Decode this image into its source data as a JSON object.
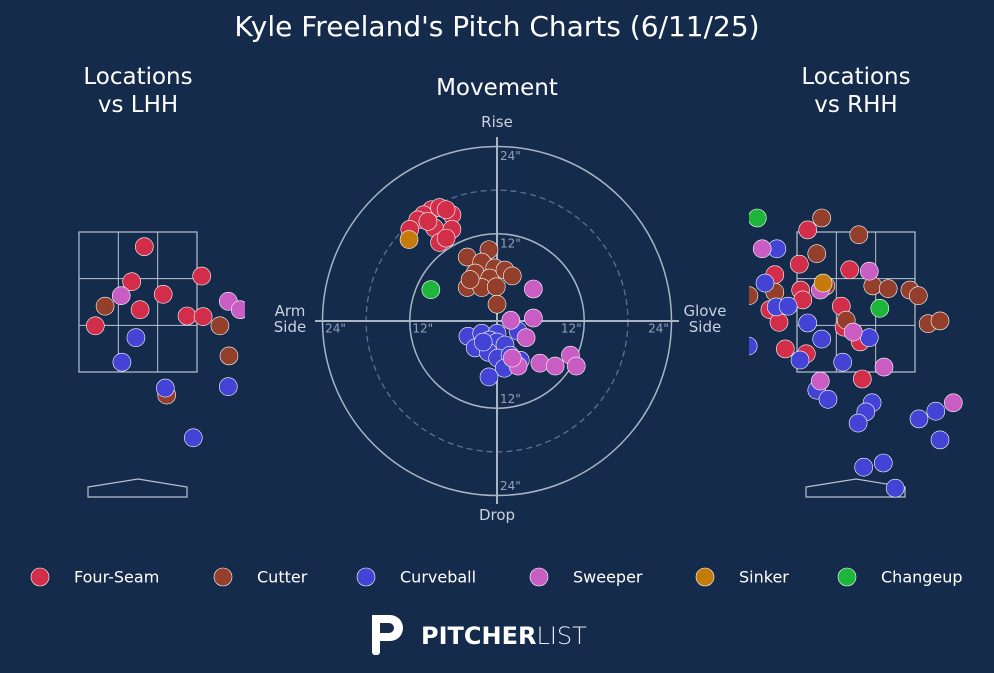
{
  "title": "Kyle Freeland's Pitch Charts (6/11/25)",
  "chart_data": [
    {
      "type": "scatter",
      "title": "Locations\nvs LHH",
      "xlim": [
        -1.5,
        1.5
      ],
      "ylim": [
        -0.3,
        4.8
      ],
      "series": [
        {
          "color": "#d22d49",
          "x": [
            0.09,
            -0.09,
            0.91,
            0.36,
            0.03,
            -0.61,
            0.7,
            0.93
          ],
          "y": [
            3.29,
            2.79,
            2.87,
            2.61,
            2.39,
            2.16,
            2.3,
            2.29
          ]
        },
        {
          "color": "#933f2c",
          "x": [
            -0.47,
            1.17,
            1.3,
            0.41
          ],
          "y": [
            2.44,
            2.16,
            1.73,
            1.17
          ]
        },
        {
          "color": "#4343d6",
          "x": [
            -0.03,
            -0.23,
            0.39,
            1.29,
            0.79
          ],
          "y": [
            1.99,
            1.64,
            1.27,
            1.29,
            0.56
          ]
        },
        {
          "color": "#c95dc4",
          "x": [
            -0.24,
            1.29,
            1.46
          ],
          "y": [
            2.59,
            2.51,
            2.39
          ]
        }
      ]
    },
    {
      "type": "movement",
      "title": "Movement",
      "xlim": [
        -24,
        24
      ],
      "ylim": [
        -24,
        24
      ],
      "xticks": [
        {
          "value": -24,
          "label": "24\""
        },
        {
          "value": -12,
          "label": "12\""
        },
        {
          "value": 12,
          "label": "12\""
        },
        {
          "value": 24,
          "label": "24\""
        }
      ],
      "yticks": [
        {
          "value": 24,
          "label": "24\""
        },
        {
          "value": 12,
          "label": "12\""
        },
        {
          "value": -12,
          "label": "12\""
        },
        {
          "value": -24,
          "label": "24\""
        }
      ],
      "x_label_left": "Arm\nSide",
      "x_label_right": "Glove\nSide",
      "y_label_top": "Rise",
      "y_label_bottom": "Drop",
      "series": [
        {
          "name": "Four-Seam",
          "color": "#d22d49",
          "x": [
            -9.0,
            -10.1,
            -7.9,
            -6.2,
            -7.0,
            -10.9,
            -12.0,
            -8.6,
            -6.2,
            -7.9,
            -7.0,
            -9.5
          ],
          "y": [
            15.3,
            14.6,
            15.6,
            14.6,
            15.3,
            13.9,
            12.6,
            12.8,
            12.6,
            10.8,
            11.4,
            13.7
          ]
        },
        {
          "name": "Cutter",
          "color": "#933f2c",
          "x": [
            -4.1,
            -1.1,
            -2.1,
            -0.3,
            -3.0,
            -1.0,
            1.1,
            2.1,
            -4.1,
            -2.1,
            -0.1,
            0,
            -3.7
          ],
          "y": [
            8.8,
            9.8,
            8.1,
            7.3,
            6.6,
            5.9,
            7.0,
            6.2,
            4.6,
            4.6,
            4.7,
            2.3,
            5.7
          ]
        },
        {
          "name": "Curveball",
          "color": "#4343d6",
          "x": [
            -4.0,
            -2.1,
            0,
            2.9,
            -1.0,
            -3.0,
            0,
            1.1,
            -1.2,
            0.1,
            1.8,
            1.0,
            -1.1,
            3.2,
            -1.9
          ],
          "y": [
            -2.1,
            -1.7,
            -1.7,
            -1.4,
            -2.6,
            -3.7,
            -2.9,
            -3.3,
            -4.3,
            -5.1,
            -4.7,
            -6.5,
            -7.7,
            -5.4,
            -2.9
          ]
        },
        {
          "name": "Sweeper",
          "color": "#c95dc4",
          "x": [
            5.0,
            1.9,
            5.0,
            4.0,
            2.9,
            5.9,
            8.0,
            10.1,
            10.9,
            2.1
          ],
          "y": [
            4.4,
            0.1,
            0.4,
            -2.3,
            -6.2,
            -5.8,
            -6.2,
            -4.7,
            -6.2,
            -5.1
          ]
        },
        {
          "name": "Sinker",
          "color": "#c57a0c",
          "x": [
            -12.1
          ],
          "y": [
            11.2
          ]
        },
        {
          "name": "Changeup",
          "color": "#1db53a",
          "x": [
            -9.1
          ],
          "y": [
            4.3
          ]
        }
      ]
    },
    {
      "type": "scatter",
      "title": "Locations\nvs RHH",
      "xlim": [
        -1.5,
        1.5
      ],
      "ylim": [
        -0.3,
        4.8
      ],
      "series": [
        {
          "color": "#d22d49",
          "x": [
            -0.69,
            -0.81,
            -1.16,
            -0.09,
            -0.79,
            -0.76,
            -0.21,
            -1.23,
            -1.1,
            -0.17,
            -1.01,
            -0.71,
            0.09,
            0.06
          ],
          "y": [
            3.53,
            3.04,
            2.89,
            2.96,
            2.67,
            2.53,
            2.44,
            2.39,
            2.21,
            2.14,
            1.83,
            1.76,
            1.4,
            1.93
          ]
        },
        {
          "color": "#933f2c",
          "x": [
            -0.49,
            0.04,
            -0.56,
            -1.53,
            -0.43,
            0.24,
            0.46,
            0.77,
            0.89,
            -0.14,
            1.03,
            1.2,
            -1.16
          ],
          "y": [
            3.7,
            3.46,
            3.19,
            2.59,
            2.73,
            2.73,
            2.69,
            2.67,
            2.59,
            2.24,
            2.19,
            2.23,
            2.64
          ]
        },
        {
          "color": "#4343d6",
          "x": [
            -1.13,
            -1.3,
            -1.14,
            -0.97,
            -0.69,
            -0.49,
            0.19,
            -0.8,
            -0.19,
            -1.54,
            -0.56,
            -0.4,
            0.23,
            0.14,
            0.03,
            0.9,
            1.14,
            1.2,
            0.11,
            0.39,
            0.56
          ],
          "y": [
            3.26,
            2.77,
            2.43,
            2.44,
            2.2,
            1.97,
            1.99,
            1.67,
            1.64,
            1.87,
            1.24,
            1.11,
            1.06,
            0.93,
            0.77,
            0.83,
            0.94,
            0.53,
            0.14,
            0.2,
            -0.16
          ]
        },
        {
          "color": "#c95dc4",
          "x": [
            -1.34,
            0.19,
            -0.51,
            -0.04,
            0.4,
            -0.51,
            1.39
          ],
          "y": [
            3.26,
            2.94,
            2.67,
            2.07,
            1.57,
            1.37,
            1.06
          ]
        },
        {
          "color": "#c57a0c",
          "x": [
            -0.47
          ],
          "y": [
            2.77
          ]
        },
        {
          "color": "#1db53a",
          "x": [
            -1.41,
            0.34
          ],
          "y": [
            3.7,
            2.41
          ]
        }
      ]
    }
  ],
  "logo": {
    "bold": "PITCHER",
    "light": "LIST"
  }
}
